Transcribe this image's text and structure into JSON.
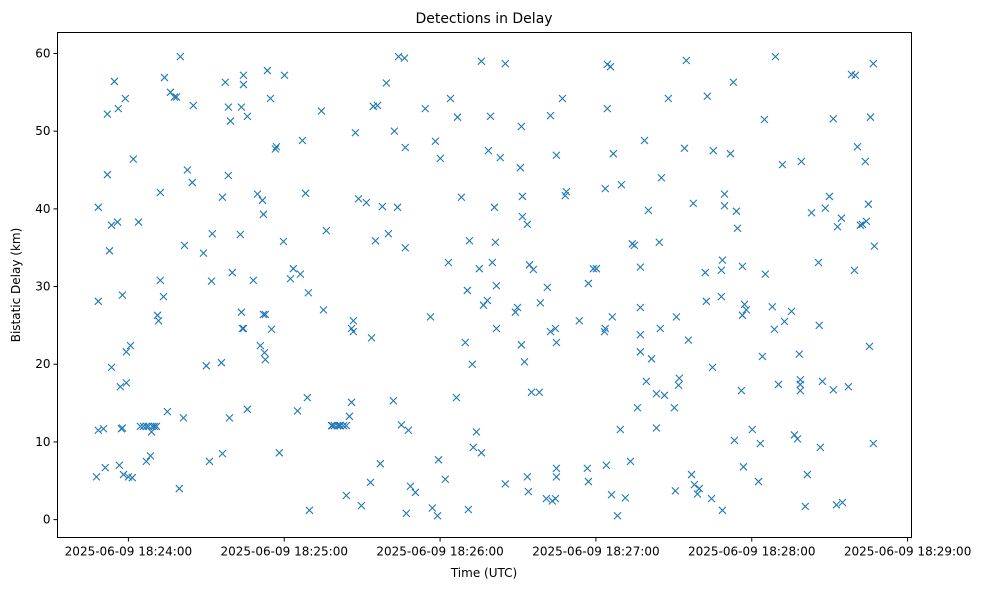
{
  "chart_data": {
    "type": "scatter",
    "title": "Detections in Delay",
    "xlabel": "Time (UTC)",
    "ylabel": "Bistatic Delay (km)",
    "x_units": "seconds relative to 2025-06-09 18:24:00",
    "xlim": [
      -27.3,
      301.5
    ],
    "ylim": [
      -2.3,
      62.7
    ],
    "grid": false,
    "marker": "x",
    "color": "#1f77b4",
    "x_ticks": [
      {
        "value": 0,
        "label": "2025-06-09 18:24:00"
      },
      {
        "value": 60,
        "label": "2025-06-09 18:25:00"
      },
      {
        "value": 120,
        "label": "2025-06-09 18:26:00"
      },
      {
        "value": 180,
        "label": "2025-06-09 18:27:00"
      },
      {
        "value": 240,
        "label": "2025-06-09 18:28:00"
      },
      {
        "value": 300,
        "label": "2025-06-09 18:29:00"
      }
    ],
    "y_ticks": [
      {
        "value": 0,
        "label": "0"
      },
      {
        "value": 10,
        "label": "10"
      },
      {
        "value": 20,
        "label": "20"
      },
      {
        "value": 30,
        "label": "30"
      },
      {
        "value": 40,
        "label": "40"
      },
      {
        "value": 50,
        "label": "50"
      },
      {
        "value": 60,
        "label": "60"
      }
    ],
    "points": [
      [
        -12.3,
        5.5
      ],
      [
        -11.6,
        11.5
      ],
      [
        -11.6,
        28.1
      ],
      [
        -11.6,
        40.2
      ],
      [
        -9.6,
        11.7
      ],
      [
        -8.9,
        6.7
      ],
      [
        -8.1,
        44.4
      ],
      [
        -8.1,
        52.2
      ],
      [
        -7.3,
        34.6
      ],
      [
        -6.5,
        19.6
      ],
      [
        -6.5,
        37.9
      ],
      [
        -5.4,
        56.4
      ],
      [
        -4.2,
        38.3
      ],
      [
        -3.9,
        52.9
      ],
      [
        -3.5,
        7.0
      ],
      [
        -3.1,
        17.1
      ],
      [
        -2.7,
        11.7
      ],
      [
        -2.3,
        28.9
      ],
      [
        -2.3,
        11.8
      ],
      [
        -1.9,
        5.8
      ],
      [
        -1.2,
        54.2
      ],
      [
        -0.8,
        21.6
      ],
      [
        -0.8,
        17.6
      ],
      [
        0,
        5.5
      ],
      [
        0.8,
        22.4
      ],
      [
        1.5,
        5.4
      ],
      [
        1.9,
        46.4
      ],
      [
        3.9,
        38.3
      ],
      [
        4.6,
        12.0
      ],
      [
        5.8,
        12.0
      ],
      [
        6.9,
        12.0
      ],
      [
        6.9,
        7.5
      ],
      [
        7.7,
        12.0
      ],
      [
        8.5,
        8.2
      ],
      [
        8.9,
        11.3
      ],
      [
        9.2,
        12.0
      ],
      [
        10.0,
        12.0
      ],
      [
        10.8,
        12.0
      ],
      [
        11.2,
        26.3
      ],
      [
        11.6,
        25.6
      ],
      [
        12.3,
        30.8
      ],
      [
        12.3,
        42.1
      ],
      [
        13.5,
        28.7
      ],
      [
        13.9,
        56.9
      ],
      [
        15.0,
        13.9
      ],
      [
        16.2,
        55.0
      ],
      [
        17.7,
        54.4
      ],
      [
        18.5,
        54.4
      ],
      [
        19.6,
        4.0
      ],
      [
        20.0,
        59.6
      ],
      [
        21.2,
        13.1
      ],
      [
        21.6,
        35.3
      ],
      [
        22.7,
        45.0
      ],
      [
        24.6,
        43.4
      ],
      [
        25.0,
        53.3
      ],
      [
        28.9,
        34.3
      ],
      [
        30.0,
        19.8
      ],
      [
        31.2,
        7.5
      ],
      [
        32.0,
        30.7
      ],
      [
        32.3,
        36.8
      ],
      [
        35.8,
        20.2
      ],
      [
        36.2,
        8.5
      ],
      [
        36.2,
        41.5
      ],
      [
        37.3,
        56.3
      ],
      [
        38.5,
        44.3
      ],
      [
        38.5,
        53.1
      ],
      [
        38.9,
        13.1
      ],
      [
        39.3,
        51.3
      ],
      [
        40.0,
        31.8
      ],
      [
        43.1,
        36.7
      ],
      [
        43.5,
        53.1
      ],
      [
        43.5,
        26.7
      ],
      [
        43.9,
        24.6
      ],
      [
        44.3,
        24.6
      ],
      [
        44.3,
        56.0
      ],
      [
        44.3,
        57.2
      ],
      [
        45.8,
        51.9
      ],
      [
        45.8,
        14.2
      ],
      [
        48.1,
        30.8
      ],
      [
        49.7,
        41.9
      ],
      [
        50.8,
        22.4
      ],
      [
        51.6,
        41.1
      ],
      [
        52.0,
        39.3
      ],
      [
        52.0,
        26.4
      ],
      [
        52.4,
        21.5
      ],
      [
        52.7,
        20.6
      ],
      [
        52.7,
        26.4
      ],
      [
        53.5,
        57.8
      ],
      [
        54.7,
        54.2
      ],
      [
        55.1,
        24.5
      ],
      [
        56.6,
        47.7
      ],
      [
        57.0,
        48.0
      ],
      [
        58.1,
        8.6
      ],
      [
        59.7,
        35.8
      ],
      [
        60.1,
        57.2
      ],
      [
        62.4,
        31.0
      ],
      [
        63.5,
        32.3
      ],
      [
        65.1,
        14.0
      ],
      [
        66.2,
        31.6
      ],
      [
        67.0,
        48.8
      ],
      [
        68.2,
        42.0
      ],
      [
        68.9,
        15.7
      ],
      [
        69.3,
        29.2
      ],
      [
        69.7,
        1.2
      ],
      [
        74.3,
        52.6
      ],
      [
        75.1,
        27.0
      ],
      [
        76.2,
        37.2
      ],
      [
        78.2,
        12.1
      ],
      [
        78.5,
        12.1
      ],
      [
        79.3,
        12.1
      ],
      [
        80.5,
        12.1
      ],
      [
        81.2,
        12.1
      ],
      [
        81.6,
        12.1
      ],
      [
        82.8,
        12.1
      ],
      [
        83.9,
        12.1
      ],
      [
        83.9,
        3.1
      ],
      [
        85.1,
        13.3
      ],
      [
        85.9,
        24.6
      ],
      [
        85.9,
        15.1
      ],
      [
        86.6,
        25.6
      ],
      [
        86.6,
        24.2
      ],
      [
        87.4,
        49.8
      ],
      [
        88.6,
        41.3
      ],
      [
        89.7,
        1.8
      ],
      [
        91.6,
        40.8
      ],
      [
        93.2,
        4.8
      ],
      [
        93.6,
        23.4
      ],
      [
        94.3,
        53.2
      ],
      [
        95.1,
        35.9
      ],
      [
        95.9,
        53.3
      ],
      [
        97.0,
        7.2
      ],
      [
        97.8,
        40.3
      ],
      [
        99.3,
        56.2
      ],
      [
        100.1,
        36.8
      ],
      [
        102.0,
        15.3
      ],
      [
        102.4,
        50.0
      ],
      [
        103.6,
        40.2
      ],
      [
        104.0,
        59.6
      ],
      [
        105.1,
        12.2
      ],
      [
        106.3,
        59.4
      ],
      [
        106.6,
        47.9
      ],
      [
        106.6,
        35.0
      ],
      [
        107.0,
        0.8
      ],
      [
        107.8,
        11.5
      ],
      [
        108.6,
        4.3
      ],
      [
        110.5,
        3.5
      ],
      [
        114.3,
        52.9
      ],
      [
        116.3,
        26.1
      ],
      [
        117.0,
        1.5
      ],
      [
        118.2,
        48.7
      ],
      [
        119.0,
        0.5
      ],
      [
        119.4,
        7.7
      ],
      [
        120.1,
        46.5
      ],
      [
        122.0,
        5.2
      ],
      [
        123.2,
        33.1
      ],
      [
        124.0,
        54.2
      ],
      [
        126.3,
        15.7
      ],
      [
        126.7,
        51.8
      ],
      [
        128.2,
        41.5
      ],
      [
        129.7,
        22.8
      ],
      [
        130.5,
        29.5
      ],
      [
        130.9,
        1.3
      ],
      [
        131.3,
        35.9
      ],
      [
        132.4,
        20.0
      ],
      [
        132.8,
        9.3
      ],
      [
        134.0,
        11.3
      ],
      [
        135.1,
        32.3
      ],
      [
        135.9,
        59.0
      ],
      [
        135.9,
        8.6
      ],
      [
        136.7,
        27.6
      ],
      [
        138.2,
        28.2
      ],
      [
        138.6,
        47.5
      ],
      [
        139.4,
        51.9
      ],
      [
        140.1,
        33.1
      ],
      [
        140.9,
        40.2
      ],
      [
        141.3,
        35.7
      ],
      [
        141.7,
        24.6
      ],
      [
        141.7,
        30.1
      ],
      [
        143.2,
        46.6
      ],
      [
        145.1,
        4.6
      ],
      [
        145.1,
        58.7
      ],
      [
        149.0,
        26.7
      ],
      [
        149.8,
        27.3
      ],
      [
        150.9,
        45.3
      ],
      [
        151.3,
        22.5
      ],
      [
        151.3,
        50.6
      ],
      [
        151.7,
        41.6
      ],
      [
        151.7,
        39.0
      ],
      [
        152.5,
        20.3
      ],
      [
        153.6,
        38.0
      ],
      [
        154.0,
        3.6
      ],
      [
        153.6,
        5.5
      ],
      [
        154.4,
        32.8
      ],
      [
        155.2,
        16.4
      ],
      [
        155.9,
        32.2
      ],
      [
        158.2,
        16.4
      ],
      [
        158.6,
        27.9
      ],
      [
        160.9,
        2.7
      ],
      [
        161.3,
        29.9
      ],
      [
        162.5,
        24.2
      ],
      [
        162.5,
        52.0
      ],
      [
        163.2,
        2.4
      ],
      [
        164.4,
        2.7
      ],
      [
        164.4,
        24.6
      ],
      [
        164.8,
        46.9
      ],
      [
        164.8,
        22.8
      ],
      [
        164.8,
        6.6
      ],
      [
        164.8,
        5.5
      ],
      [
        167.1,
        54.2
      ],
      [
        168.2,
        41.7
      ],
      [
        168.6,
        42.2
      ],
      [
        173.6,
        25.6
      ],
      [
        176.7,
        6.6
      ],
      [
        177.1,
        4.9
      ],
      [
        177.1,
        30.4
      ],
      [
        179.0,
        32.3
      ],
      [
        180.2,
        32.3
      ],
      [
        183.3,
        24.2
      ],
      [
        183.6,
        42.6
      ],
      [
        183.6,
        24.6
      ],
      [
        184.0,
        7.0
      ],
      [
        184.4,
        52.9
      ],
      [
        184.4,
        58.6
      ],
      [
        185.6,
        58.3
      ],
      [
        186.0,
        3.2
      ],
      [
        186.3,
        26.1
      ],
      [
        186.7,
        47.1
      ],
      [
        188.3,
        0.5
      ],
      [
        189.4,
        11.6
      ],
      [
        189.8,
        43.1
      ],
      [
        191.3,
        2.8
      ],
      [
        193.3,
        7.5
      ],
      [
        194.0,
        35.5
      ],
      [
        194.8,
        35.3
      ],
      [
        196.0,
        14.4
      ],
      [
        197.1,
        23.8
      ],
      [
        197.1,
        21.6
      ],
      [
        197.1,
        32.5
      ],
      [
        197.1,
        27.3
      ],
      [
        198.7,
        48.8
      ],
      [
        199.4,
        17.8
      ],
      [
        200.2,
        39.8
      ],
      [
        201.4,
        20.7
      ],
      [
        203.3,
        16.2
      ],
      [
        203.3,
        11.8
      ],
      [
        204.4,
        35.7
      ],
      [
        204.8,
        24.6
      ],
      [
        205.2,
        44.0
      ],
      [
        206.4,
        16.0
      ],
      [
        207.9,
        54.2
      ],
      [
        210.2,
        14.4
      ],
      [
        211.0,
        26.1
      ],
      [
        211.8,
        17.3
      ],
      [
        212.1,
        18.2
      ],
      [
        210.6,
        3.7
      ],
      [
        214.1,
        47.8
      ],
      [
        214.8,
        59.1
      ],
      [
        215.6,
        23.1
      ],
      [
        216.8,
        5.8
      ],
      [
        217.5,
        40.7
      ],
      [
        217.9,
        4.5
      ],
      [
        219.1,
        3.3
      ],
      [
        219.8,
        4.0
      ],
      [
        222.1,
        31.8
      ],
      [
        222.5,
        28.1
      ],
      [
        222.9,
        54.5
      ],
      [
        224.5,
        2.7
      ],
      [
        224.9,
        19.6
      ],
      [
        225.2,
        47.5
      ],
      [
        228.7,
        33.4
      ],
      [
        228.3,
        32.1
      ],
      [
        228.3,
        28.7
      ],
      [
        228.7,
        1.2
      ],
      [
        229.5,
        41.9
      ],
      [
        229.5,
        40.4
      ],
      [
        231.8,
        47.1
      ],
      [
        232.9,
        56.3
      ],
      [
        233.3,
        10.2
      ],
      [
        234.1,
        39.7
      ],
      [
        234.5,
        37.5
      ],
      [
        236.0,
        16.6
      ],
      [
        236.4,
        26.3
      ],
      [
        236.4,
        32.6
      ],
      [
        236.8,
        6.8
      ],
      [
        237.2,
        27.7
      ],
      [
        237.9,
        27.0
      ],
      [
        240.2,
        11.6
      ],
      [
        242.6,
        4.9
      ],
      [
        243.3,
        9.8
      ],
      [
        244.1,
        21.0
      ],
      [
        244.9,
        51.5
      ],
      [
        245.2,
        31.6
      ],
      [
        247.9,
        27.4
      ],
      [
        248.7,
        24.5
      ],
      [
        249.1,
        59.6
      ],
      [
        250.3,
        17.4
      ],
      [
        251.8,
        45.7
      ],
      [
        252.6,
        25.5
      ],
      [
        255.3,
        26.8
      ],
      [
        256.4,
        10.9
      ],
      [
        257.6,
        10.4
      ],
      [
        258.3,
        21.3
      ],
      [
        258.7,
        16.6
      ],
      [
        258.7,
        17.4
      ],
      [
        258.7,
        18.0
      ],
      [
        259.1,
        46.1
      ],
      [
        260.6,
        1.7
      ],
      [
        261.4,
        5.8
      ],
      [
        263.0,
        39.5
      ],
      [
        265.7,
        33.1
      ],
      [
        266.0,
        25.0
      ],
      [
        266.4,
        9.3
      ],
      [
        267.2,
        17.8
      ],
      [
        268.3,
        40.1
      ],
      [
        269.9,
        41.6
      ],
      [
        271.4,
        51.6
      ],
      [
        271.4,
        16.7
      ],
      [
        272.6,
        1.9
      ],
      [
        273.0,
        37.7
      ],
      [
        274.5,
        38.8
      ],
      [
        274.9,
        2.2
      ],
      [
        277.2,
        17.1
      ],
      [
        278.4,
        57.3
      ],
      [
        279.5,
        32.1
      ],
      [
        279.9,
        57.2
      ],
      [
        280.7,
        48.0
      ],
      [
        281.8,
        37.9
      ],
      [
        282.6,
        38.0
      ],
      [
        283.7,
        46.1
      ],
      [
        284.1,
        38.4
      ],
      [
        284.9,
        40.6
      ],
      [
        285.3,
        22.3
      ],
      [
        285.7,
        51.8
      ],
      [
        286.8,
        9.8
      ],
      [
        286.8,
        58.7
      ],
      [
        287.2,
        35.2
      ]
    ]
  }
}
